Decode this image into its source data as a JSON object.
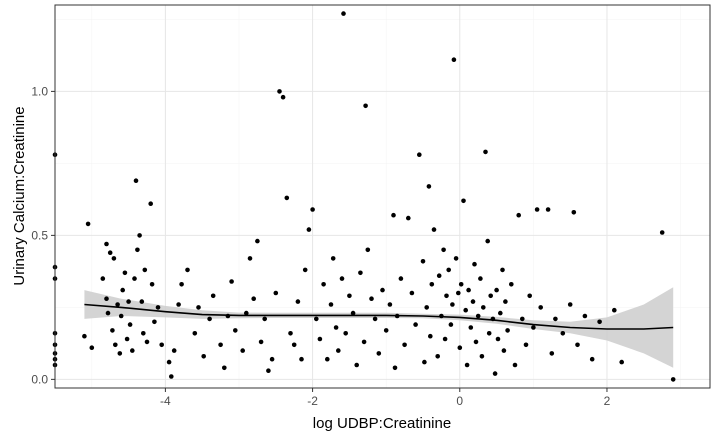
{
  "chart_data": {
    "type": "scatter",
    "title": "",
    "xlabel": "log UDBP:Creatinine",
    "ylabel": "Urinary Calcium:Creatinine",
    "xlim": [
      -5.5,
      3.4
    ],
    "ylim": [
      -0.03,
      1.3
    ],
    "x_ticks": [
      -4,
      -2,
      0,
      2
    ],
    "x_tick_labels": [
      "-4",
      "-2",
      "0",
      "2"
    ],
    "y_ticks": [
      0.0,
      0.5,
      1.0
    ],
    "y_tick_labels": [
      "0.0",
      "0.5",
      "1.0"
    ],
    "grid": true,
    "legend": "none",
    "colors": {
      "points": "#000000",
      "smooth_line": "#000000",
      "ribbon": "#cccccc",
      "grid_major": "#e6e6e6",
      "grid_minor": "#f3f3f3",
      "border": "#333333"
    },
    "smooth": {
      "method": "loess",
      "x": [
        -5.1,
        -4.6,
        -4.0,
        -3.5,
        -3.0,
        -2.5,
        -2.0,
        -1.5,
        -1.0,
        -0.5,
        0.0,
        0.5,
        1.0,
        1.5,
        2.0,
        2.5,
        2.9
      ],
      "y": [
        0.26,
        0.25,
        0.235,
        0.225,
        0.222,
        0.222,
        0.222,
        0.222,
        0.222,
        0.22,
        0.215,
        0.205,
        0.19,
        0.18,
        0.175,
        0.175,
        0.18
      ],
      "ci_lower": [
        0.21,
        0.22,
        0.215,
        0.21,
        0.212,
        0.213,
        0.213,
        0.213,
        0.213,
        0.212,
        0.205,
        0.193,
        0.175,
        0.16,
        0.135,
        0.09,
        0.04
      ],
      "ci_upper": [
        0.31,
        0.28,
        0.255,
        0.24,
        0.232,
        0.231,
        0.231,
        0.231,
        0.231,
        0.228,
        0.225,
        0.217,
        0.205,
        0.2,
        0.215,
        0.26,
        0.32
      ]
    },
    "points": [
      [
        -5.5,
        0.78
      ],
      [
        -5.5,
        0.39
      ],
      [
        -5.5,
        0.35
      ],
      [
        -5.5,
        0.16
      ],
      [
        -5.5,
        0.12
      ],
      [
        -5.5,
        0.09
      ],
      [
        -5.5,
        0.07
      ],
      [
        -5.5,
        0.05
      ],
      [
        -5.05,
        0.54
      ],
      [
        -5.1,
        0.15
      ],
      [
        -5.0,
        0.11
      ],
      [
        -4.85,
        0.35
      ],
      [
        -4.8,
        0.47
      ],
      [
        -4.8,
        0.28
      ],
      [
        -4.78,
        0.23
      ],
      [
        -4.75,
        0.44
      ],
      [
        -4.7,
        0.42
      ],
      [
        -4.72,
        0.17
      ],
      [
        -4.68,
        0.12
      ],
      [
        -4.65,
        0.26
      ],
      [
        -4.62,
        0.09
      ],
      [
        -4.6,
        0.22
      ],
      [
        -4.58,
        0.31
      ],
      [
        -4.55,
        0.37
      ],
      [
        -4.52,
        0.14
      ],
      [
        -4.5,
        0.27
      ],
      [
        -4.48,
        0.19
      ],
      [
        -4.45,
        0.1
      ],
      [
        -4.42,
        0.35
      ],
      [
        -4.4,
        0.69
      ],
      [
        -4.38,
        0.45
      ],
      [
        -4.35,
        0.5
      ],
      [
        -4.32,
        0.27
      ],
      [
        -4.3,
        0.16
      ],
      [
        -4.28,
        0.38
      ],
      [
        -4.25,
        0.13
      ],
      [
        -4.2,
        0.61
      ],
      [
        -4.18,
        0.33
      ],
      [
        -4.15,
        0.2
      ],
      [
        -4.1,
        0.25
      ],
      [
        -4.05,
        0.12
      ],
      [
        -3.95,
        0.06
      ],
      [
        -3.92,
        0.01
      ],
      [
        -3.88,
        0.1
      ],
      [
        -3.82,
        0.26
      ],
      [
        -3.78,
        0.33
      ],
      [
        -3.7,
        0.38
      ],
      [
        -3.6,
        0.16
      ],
      [
        -3.55,
        0.25
      ],
      [
        -3.48,
        0.08
      ],
      [
        -3.4,
        0.21
      ],
      [
        -3.35,
        0.29
      ],
      [
        -3.25,
        0.12
      ],
      [
        -3.2,
        0.04
      ],
      [
        -3.15,
        0.22
      ],
      [
        -3.1,
        0.34
      ],
      [
        -3.05,
        0.17
      ],
      [
        -2.95,
        0.1
      ],
      [
        -2.9,
        0.23
      ],
      [
        -2.85,
        0.42
      ],
      [
        -2.8,
        0.28
      ],
      [
        -2.75,
        0.48
      ],
      [
        -2.7,
        0.13
      ],
      [
        -2.65,
        0.21
      ],
      [
        -2.6,
        0.03
      ],
      [
        -2.55,
        0.07
      ],
      [
        -2.5,
        0.3
      ],
      [
        -2.45,
        1.0
      ],
      [
        -2.4,
        0.98
      ],
      [
        -2.35,
        0.63
      ],
      [
        -2.3,
        0.16
      ],
      [
        -2.25,
        0.12
      ],
      [
        -2.2,
        0.27
      ],
      [
        -2.15,
        0.07
      ],
      [
        -2.1,
        0.38
      ],
      [
        -2.05,
        0.52
      ],
      [
        -2.0,
        0.59
      ],
      [
        -1.95,
        0.21
      ],
      [
        -1.9,
        0.14
      ],
      [
        -1.85,
        0.33
      ],
      [
        -1.8,
        0.07
      ],
      [
        -1.75,
        0.26
      ],
      [
        -1.72,
        0.42
      ],
      [
        -1.68,
        0.18
      ],
      [
        -1.65,
        0.1
      ],
      [
        -1.6,
        0.35
      ],
      [
        -1.58,
        1.27
      ],
      [
        -1.55,
        0.16
      ],
      [
        -1.5,
        0.29
      ],
      [
        -1.45,
        0.23
      ],
      [
        -1.4,
        0.05
      ],
      [
        -1.35,
        0.37
      ],
      [
        -1.3,
        0.13
      ],
      [
        -1.28,
        0.95
      ],
      [
        -1.25,
        0.45
      ],
      [
        -1.2,
        0.28
      ],
      [
        -1.15,
        0.21
      ],
      [
        -1.1,
        0.09
      ],
      [
        -1.05,
        0.31
      ],
      [
        -1.0,
        0.17
      ],
      [
        -0.95,
        0.26
      ],
      [
        -0.9,
        0.57
      ],
      [
        -0.88,
        0.04
      ],
      [
        -0.85,
        0.22
      ],
      [
        -0.8,
        0.35
      ],
      [
        -0.75,
        0.12
      ],
      [
        -0.7,
        0.56
      ],
      [
        -0.65,
        0.3
      ],
      [
        -0.6,
        0.19
      ],
      [
        -0.55,
        0.78
      ],
      [
        -0.5,
        0.41
      ],
      [
        -0.48,
        0.06
      ],
      [
        -0.45,
        0.25
      ],
      [
        -0.42,
        0.67
      ],
      [
        -0.4,
        0.15
      ],
      [
        -0.38,
        0.33
      ],
      [
        -0.35,
        0.52
      ],
      [
        -0.3,
        0.08
      ],
      [
        -0.28,
        0.36
      ],
      [
        -0.25,
        0.22
      ],
      [
        -0.22,
        0.45
      ],
      [
        -0.2,
        0.14
      ],
      [
        -0.18,
        0.29
      ],
      [
        -0.15,
        0.38
      ],
      [
        -0.12,
        0.19
      ],
      [
        -0.1,
        0.26
      ],
      [
        -0.08,
        1.11
      ],
      [
        -0.05,
        0.42
      ],
      [
        -0.02,
        0.3
      ],
      [
        0.0,
        0.11
      ],
      [
        0.02,
        0.33
      ],
      [
        0.05,
        0.62
      ],
      [
        0.08,
        0.24
      ],
      [
        0.1,
        0.05
      ],
      [
        0.12,
        0.31
      ],
      [
        0.15,
        0.18
      ],
      [
        0.18,
        0.27
      ],
      [
        0.2,
        0.4
      ],
      [
        0.22,
        0.13
      ],
      [
        0.25,
        0.22
      ],
      [
        0.28,
        0.35
      ],
      [
        0.3,
        0.08
      ],
      [
        0.32,
        0.25
      ],
      [
        0.35,
        0.79
      ],
      [
        0.38,
        0.48
      ],
      [
        0.4,
        0.16
      ],
      [
        0.42,
        0.29
      ],
      [
        0.45,
        0.21
      ],
      [
        0.48,
        0.02
      ],
      [
        0.5,
        0.31
      ],
      [
        0.52,
        0.14
      ],
      [
        0.55,
        0.23
      ],
      [
        0.58,
        0.38
      ],
      [
        0.6,
        0.1
      ],
      [
        0.62,
        0.27
      ],
      [
        0.65,
        0.17
      ],
      [
        0.7,
        0.33
      ],
      [
        0.75,
        0.05
      ],
      [
        0.8,
        0.57
      ],
      [
        0.85,
        0.21
      ],
      [
        0.9,
        0.12
      ],
      [
        0.95,
        0.29
      ],
      [
        1.0,
        0.18
      ],
      [
        1.05,
        0.59
      ],
      [
        1.1,
        0.25
      ],
      [
        1.2,
        0.59
      ],
      [
        1.25,
        0.09
      ],
      [
        1.3,
        0.21
      ],
      [
        1.4,
        0.16
      ],
      [
        1.5,
        0.26
      ],
      [
        1.55,
        0.58
      ],
      [
        1.6,
        0.12
      ],
      [
        1.7,
        0.22
      ],
      [
        1.8,
        0.07
      ],
      [
        1.9,
        0.2
      ],
      [
        2.1,
        0.24
      ],
      [
        2.2,
        0.06
      ],
      [
        2.75,
        0.51
      ],
      [
        2.9,
        0.0
      ]
    ]
  }
}
